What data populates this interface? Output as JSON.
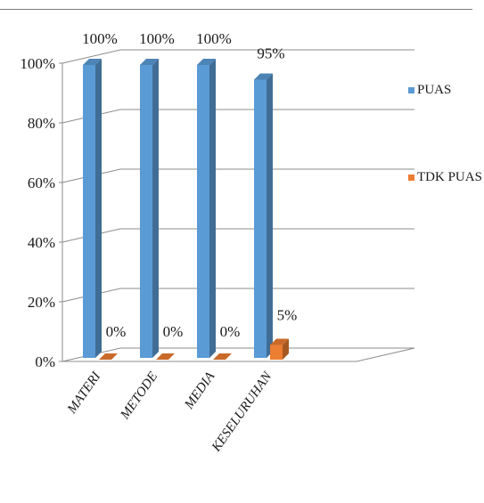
{
  "chart_data": {
    "type": "bar",
    "categories": [
      "MATERI",
      "METODE",
      "MEDIA",
      "KESELURUHAN"
    ],
    "series": [
      {
        "name": "PUAS",
        "values": [
          100,
          100,
          100,
          95
        ],
        "labels": [
          "100%",
          "100%",
          "100%",
          "95%"
        ]
      },
      {
        "name": "TDK PUAS",
        "values": [
          0,
          0,
          0,
          5
        ],
        "labels": [
          "0%",
          "0%",
          "0%",
          "5%"
        ]
      }
    ],
    "y_ticks": [
      "0%",
      "20%",
      "40%",
      "60%",
      "80%",
      "100%"
    ],
    "ylim": [
      0,
      100
    ],
    "grid": true,
    "legend_position": "right"
  },
  "colors": {
    "puas": "#5b9bd5",
    "tdk_puas": "#ed7d31"
  }
}
